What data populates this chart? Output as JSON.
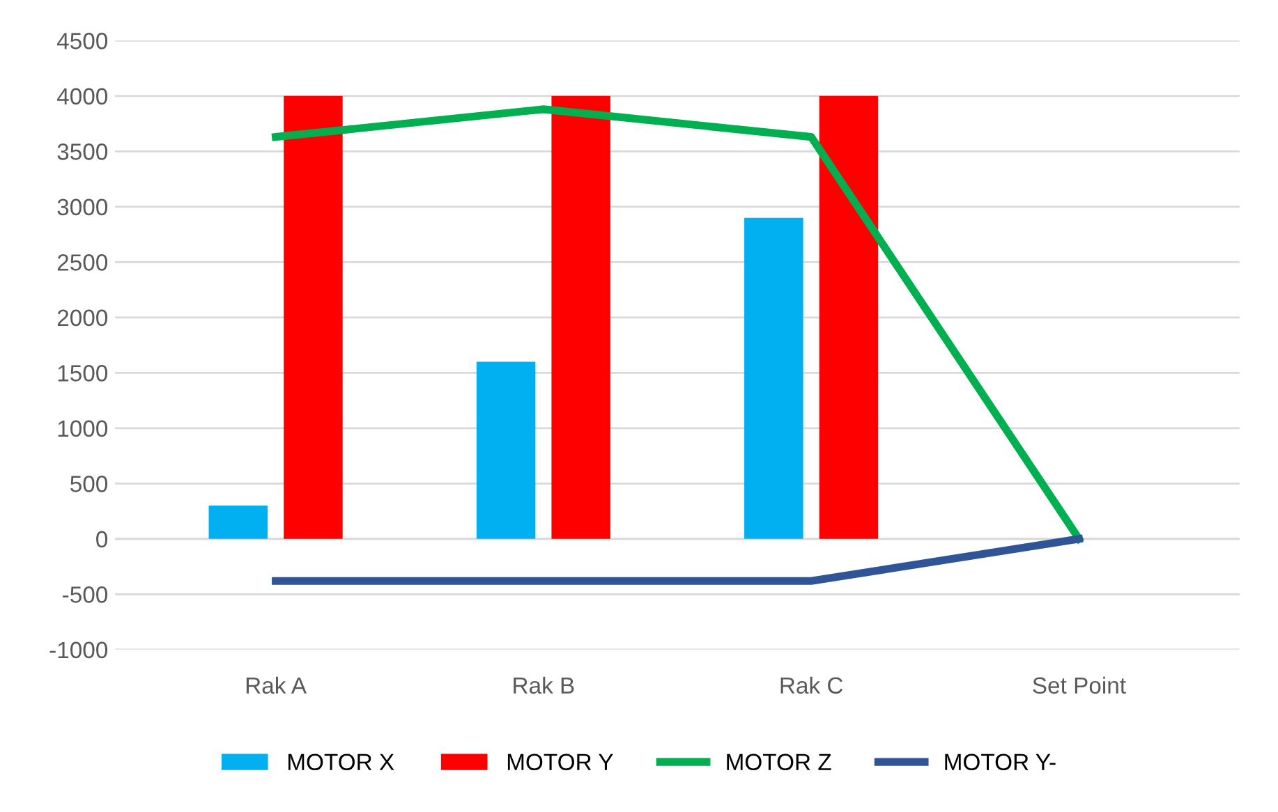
{
  "chart_data": {
    "type": "bar",
    "categories": [
      "Rak A",
      "Rak B",
      "Rak C",
      "Set Point"
    ],
    "series": [
      {
        "name": "MOTOR X",
        "color": "#00b0f0",
        "values": [
          300,
          1600,
          2900,
          null
        ]
      },
      {
        "name": "MOTOR Y",
        "color": "#ff0000",
        "values": [
          4000,
          4000,
          4000,
          null
        ]
      },
      {
        "name": "MOTOR Z",
        "color": "#00b050",
        "type": "line",
        "values": [
          3630,
          3880,
          3630,
          0
        ]
      },
      {
        "name": "MOTOR Y-",
        "color": "#2f5597",
        "type": "line",
        "values": [
          -380,
          -380,
          -380,
          0
        ]
      }
    ],
    "ylim": [
      -1000,
      4500
    ],
    "yticks": [
      -1000,
      -500,
      0,
      500,
      1000,
      1500,
      2000,
      2500,
      3000,
      3500,
      4000,
      4500
    ],
    "grid": "y",
    "legend": "bottom",
    "marker": "none",
    "line_style": "solid"
  }
}
